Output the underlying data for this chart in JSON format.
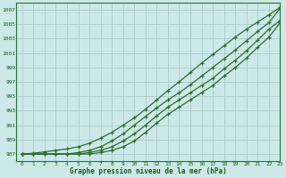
{
  "title": "Graphe pression niveau de la mer (hPa)",
  "bg_color": "#cce8e8",
  "grid_color": "#aacccc",
  "line_color": "#2d6e2d",
  "marker_color": "#2d6e2d",
  "xlim": [
    -0.5,
    23
  ],
  "ylim": [
    986.0,
    1008.0
  ],
  "yticks": [
    987,
    989,
    991,
    993,
    995,
    997,
    999,
    1001,
    1003,
    1005,
    1007
  ],
  "xticks": [
    0,
    1,
    2,
    3,
    4,
    5,
    6,
    7,
    8,
    9,
    10,
    11,
    12,
    13,
    14,
    15,
    16,
    17,
    18,
    19,
    20,
    21,
    22,
    23
  ],
  "series": [
    [
      987.0,
      987.1,
      987.3,
      987.5,
      987.7,
      988.0,
      988.5,
      989.2,
      990.0,
      991.0,
      992.0,
      993.2,
      994.5,
      995.8,
      997.0,
      998.3,
      999.6,
      1000.8,
      1002.0,
      1003.2,
      1004.3,
      1005.3,
      1006.3,
      1007.3
    ],
    [
      987.0,
      987.0,
      987.0,
      987.0,
      987.0,
      987.2,
      987.5,
      988.0,
      988.8,
      989.8,
      991.0,
      992.2,
      993.4,
      994.5,
      995.5,
      996.6,
      997.8,
      999.0,
      1000.2,
      1001.4,
      1002.7,
      1004.0,
      1005.2,
      1007.2
    ],
    [
      987.0,
      987.0,
      987.0,
      987.0,
      987.0,
      987.0,
      987.2,
      987.5,
      988.0,
      988.8,
      989.8,
      991.0,
      992.3,
      993.5,
      994.5,
      995.5,
      996.5,
      997.5,
      998.8,
      1000.0,
      1001.3,
      1002.8,
      1004.3,
      1005.5
    ],
    [
      987.0,
      987.0,
      987.0,
      987.0,
      987.0,
      987.0,
      987.0,
      987.2,
      987.5,
      988.0,
      988.8,
      990.0,
      991.3,
      992.5,
      993.5,
      994.5,
      995.5,
      996.5,
      997.8,
      999.0,
      1000.3,
      1001.8,
      1003.2,
      1005.2
    ]
  ]
}
